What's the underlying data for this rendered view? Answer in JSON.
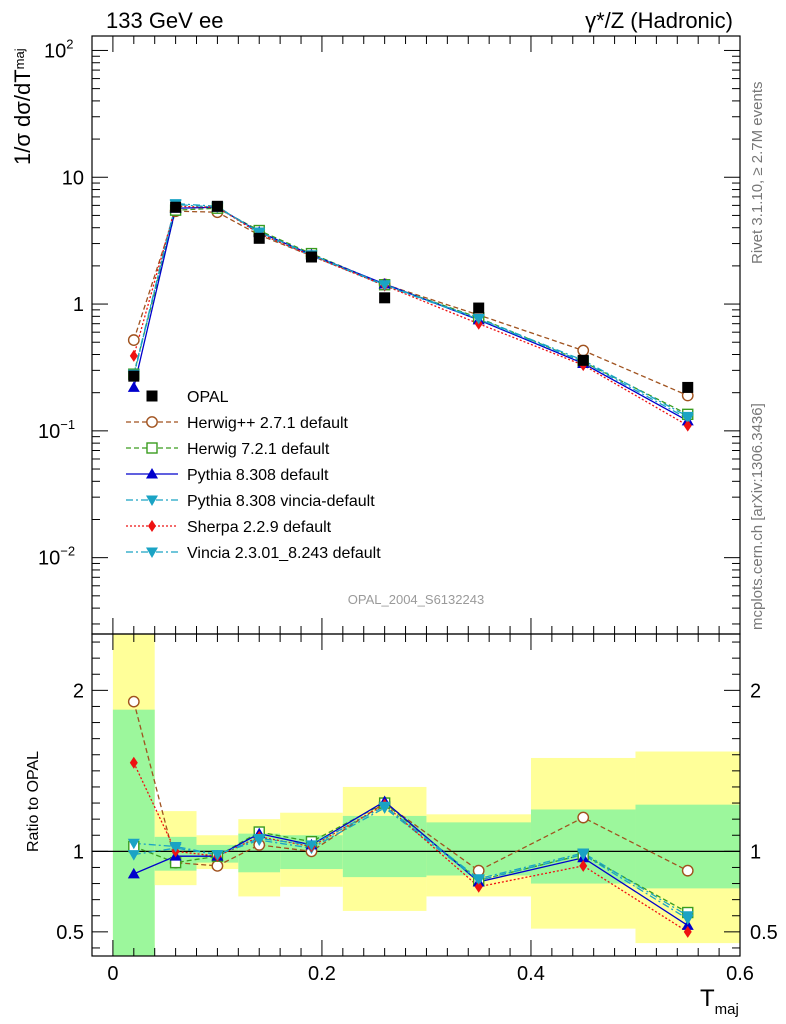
{
  "header": {
    "left_title": "133 GeV ee",
    "right_title": "γ*/Z (Hadronic)"
  },
  "side_text": {
    "rivet": "Rivet 3.1.10, ≥ 2.7M events",
    "mcplots": "mcplots.cern.ch [arXiv:1306.3436]"
  },
  "analysis_label": "OPAL_2004_S6132243",
  "chart_data": {
    "type": "line",
    "main": {
      "ylabel": "1/σ dσ/dT",
      "ylabel_sub": "maj",
      "yscale": "log",
      "ylim": [
        0.0025,
        130
      ],
      "ytick_labels": [
        {
          "base": "10",
          "exp": "2",
          "value": 100
        },
        {
          "base": "10",
          "exp": "",
          "value": 10
        },
        {
          "base": "1",
          "exp": "",
          "value": 1
        },
        {
          "base": "10",
          "exp": "−1",
          "value": 0.1
        },
        {
          "base": "10",
          "exp": "−2",
          "value": 0.01
        }
      ]
    },
    "ratio": {
      "ylabel": "Ratio to OPAL",
      "ylim": [
        0.35,
        2.35
      ],
      "ytick_labels": [
        "0.5",
        "1",
        "2"
      ],
      "ytick_values": [
        0.5,
        1,
        2
      ],
      "reference": 1
    },
    "x": {
      "label": "T",
      "label_sub": "maj",
      "xlim": [
        -0.02,
        0.6
      ],
      "tick_labels": [
        "0",
        "0.2",
        "0.4",
        "0.6"
      ],
      "tick_values": [
        0,
        0.2,
        0.4,
        0.6
      ]
    },
    "bins": [
      {
        "lo": 0.0,
        "hi": 0.04
      },
      {
        "lo": 0.04,
        "hi": 0.08
      },
      {
        "lo": 0.08,
        "hi": 0.12
      },
      {
        "lo": 0.12,
        "hi": 0.16
      },
      {
        "lo": 0.16,
        "hi": 0.22
      },
      {
        "lo": 0.22,
        "hi": 0.3
      },
      {
        "lo": 0.3,
        "hi": 0.4
      },
      {
        "lo": 0.4,
        "hi": 0.5
      },
      {
        "lo": 0.5,
        "hi": 0.6
      }
    ],
    "x_centers": [
      0.02,
      0.06,
      0.1,
      0.14,
      0.19,
      0.26,
      0.35,
      0.45,
      0.55
    ],
    "ratio_band_green": [
      [
        0.35,
        1.88
      ],
      [
        0.88,
        1.09
      ],
      [
        0.93,
        1.04
      ],
      [
        0.87,
        1.11
      ],
      [
        0.89,
        1.1
      ],
      [
        0.84,
        1.22
      ],
      [
        0.85,
        1.18
      ],
      [
        0.8,
        1.26
      ],
      [
        0.77,
        1.29
      ]
    ],
    "ratio_band_yellow": [
      [
        0.35,
        2.35
      ],
      [
        0.79,
        1.25
      ],
      [
        0.89,
        1.1
      ],
      [
        0.72,
        1.2
      ],
      [
        0.78,
        1.24
      ],
      [
        0.63,
        1.4
      ],
      [
        0.72,
        1.23
      ],
      [
        0.52,
        1.58
      ],
      [
        0.43,
        1.62
      ]
    ],
    "data": {
      "name": "OPAL",
      "values": [
        0.27,
        5.8,
        5.9,
        3.3,
        2.35,
        1.12,
        0.93,
        0.36,
        0.22
      ]
    },
    "series": [
      {
        "name": "Herwig++ 2.7.1 default",
        "color": "#a0521e",
        "dash": "5,3",
        "marker": "circle-open",
        "values": [
          0.52,
          5.4,
          5.3,
          3.5,
          2.4,
          1.43,
          0.82,
          0.43,
          0.19
        ],
        "ratio": [
          1.93,
          0.93,
          0.91,
          1.04,
          1.0,
          1.3,
          0.88,
          1.21,
          0.88
        ]
      },
      {
        "name": "Herwig 7.2.1 default",
        "color": "#3a9c1f",
        "dash": "5,3",
        "marker": "square-open",
        "values": [
          0.28,
          5.5,
          5.7,
          3.8,
          2.5,
          1.42,
          0.78,
          0.35,
          0.135
        ],
        "ratio": [
          1.03,
          0.93,
          0.97,
          1.12,
          1.06,
          1.3,
          0.82,
          0.98,
          0.62
        ]
      },
      {
        "name": "Pythia 8.308 default",
        "color": "#0000cc",
        "dash": "",
        "marker": "triangle-up",
        "values": [
          0.22,
          5.7,
          5.8,
          3.7,
          2.45,
          1.44,
          0.75,
          0.34,
          0.12
        ],
        "ratio": [
          0.86,
          0.97,
          0.97,
          1.11,
          1.04,
          1.31,
          0.81,
          0.96,
          0.54
        ]
      },
      {
        "name": "Pythia 8.308 vincia-default",
        "color": "#1aa3c4",
        "dash": "7,3,2,3",
        "marker": "triangle-down",
        "values": [
          0.27,
          6.2,
          5.9,
          3.6,
          2.4,
          1.4,
          0.76,
          0.35,
          0.125
        ],
        "ratio": [
          0.98,
          1.02,
          0.98,
          1.07,
          1.02,
          1.27,
          0.82,
          0.98,
          0.58
        ]
      },
      {
        "name": "Sherpa 2.2.9 default",
        "color": "#ee1111",
        "dash": "2,2",
        "marker": "diamond",
        "values": [
          0.39,
          5.9,
          5.8,
          3.6,
          2.4,
          1.4,
          0.7,
          0.33,
          0.11
        ],
        "ratio": [
          1.55,
          1.0,
          0.97,
          1.09,
          1.03,
          1.29,
          0.78,
          0.91,
          0.5
        ]
      },
      {
        "name": "Vincia 2.3.01_8.243 default",
        "color": "#1aa3c4",
        "dash": "7,3,2,3",
        "marker": "triangle-down",
        "values": [
          0.28,
          6.1,
          5.8,
          3.7,
          2.45,
          1.42,
          0.77,
          0.36,
          0.13
        ],
        "ratio": [
          1.05,
          1.03,
          0.98,
          1.08,
          1.04,
          1.28,
          0.83,
          0.99,
          0.6
        ]
      }
    ]
  }
}
